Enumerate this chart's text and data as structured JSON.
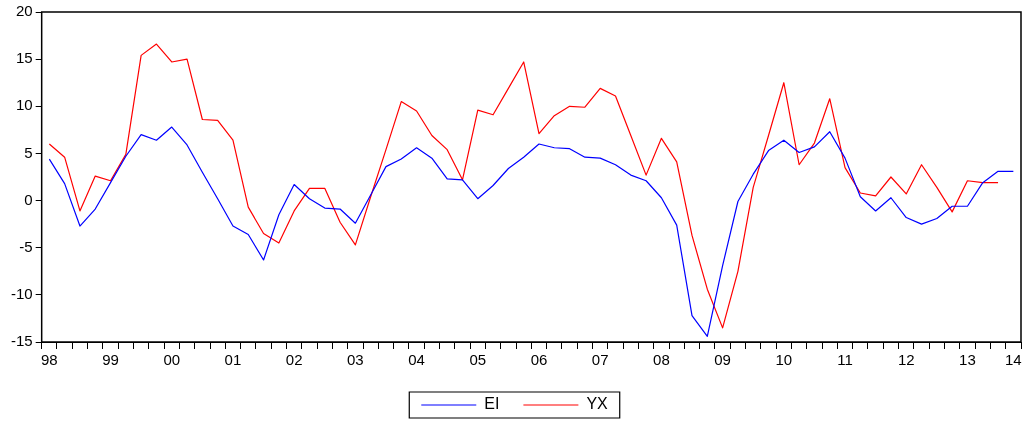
{
  "chart_data": {
    "type": "line",
    "ylim": [
      -15,
      20
    ],
    "yticks": [
      -15,
      -10,
      -5,
      0,
      5,
      10,
      15,
      20
    ],
    "categories": [
      "98",
      null,
      null,
      null,
      "99",
      null,
      null,
      null,
      "00",
      null,
      null,
      null,
      "01",
      null,
      null,
      null,
      "02",
      null,
      null,
      null,
      "03",
      null,
      null,
      null,
      "04",
      null,
      null,
      null,
      "05",
      null,
      null,
      null,
      "06",
      null,
      null,
      null,
      "07",
      null,
      null,
      null,
      "08",
      null,
      null,
      null,
      "09",
      null,
      null,
      null,
      "10",
      null,
      null,
      null,
      "11",
      null,
      null,
      null,
      "12",
      null,
      null,
      null,
      "13",
      null,
      null,
      "14"
    ],
    "legend": "bottom",
    "grid": false,
    "marker": "none",
    "line_style": "solid",
    "series": [
      {
        "name": "EI",
        "color": "#0000ff",
        "values": [
          4.4,
          1.8,
          -2.7,
          -0.9,
          1.9,
          4.7,
          7.0,
          6.4,
          7.8,
          5.9,
          3.0,
          0.2,
          -2.7,
          -3.6,
          -6.3,
          -1.5,
          1.7,
          0.2,
          -0.8,
          -0.9,
          -2.4,
          0.6,
          3.6,
          4.4,
          5.6,
          4.5,
          2.3,
          2.2,
          0.2,
          1.6,
          3.4,
          4.6,
          6.0,
          5.6,
          5.5,
          4.6,
          4.5,
          3.8,
          2.7,
          2.1,
          0.3,
          -2.6,
          -12.2,
          -14.4,
          -6.9,
          -0.1,
          2.8,
          5.3,
          6.4,
          5.1,
          5.7,
          7.3,
          4.5,
          0.4,
          -1.1,
          0.3,
          -1.8,
          -2.5,
          -1.9,
          -0.6,
          -0.6,
          1.9,
          3.1,
          3.1
        ]
      },
      {
        "name": "YX",
        "color": "#ff0000",
        "values": [
          6.0,
          4.6,
          -1.1,
          2.6,
          2.1,
          4.9,
          15.4,
          16.6,
          14.7,
          15.0,
          8.6,
          8.5,
          6.4,
          -0.7,
          -3.5,
          -4.5,
          -1.1,
          1.3,
          1.3,
          -2.3,
          -4.7,
          0.4,
          5.4,
          10.5,
          9.5,
          6.9,
          5.4,
          2.2,
          9.6,
          9.1,
          11.9,
          14.7,
          7.1,
          9.0,
          10.0,
          9.9,
          11.9,
          11.1,
          6.9,
          2.7,
          6.6,
          4.1,
          -3.7,
          -9.4,
          -13.5,
          -7.5,
          1.4,
          6.9,
          12.5,
          3.8,
          6.1,
          10.8,
          3.5,
          0.8,
          0.5,
          2.5,
          0.7,
          3.8,
          1.4,
          -1.2,
          2.1,
          1.9,
          1.9,
          null
        ]
      }
    ]
  }
}
